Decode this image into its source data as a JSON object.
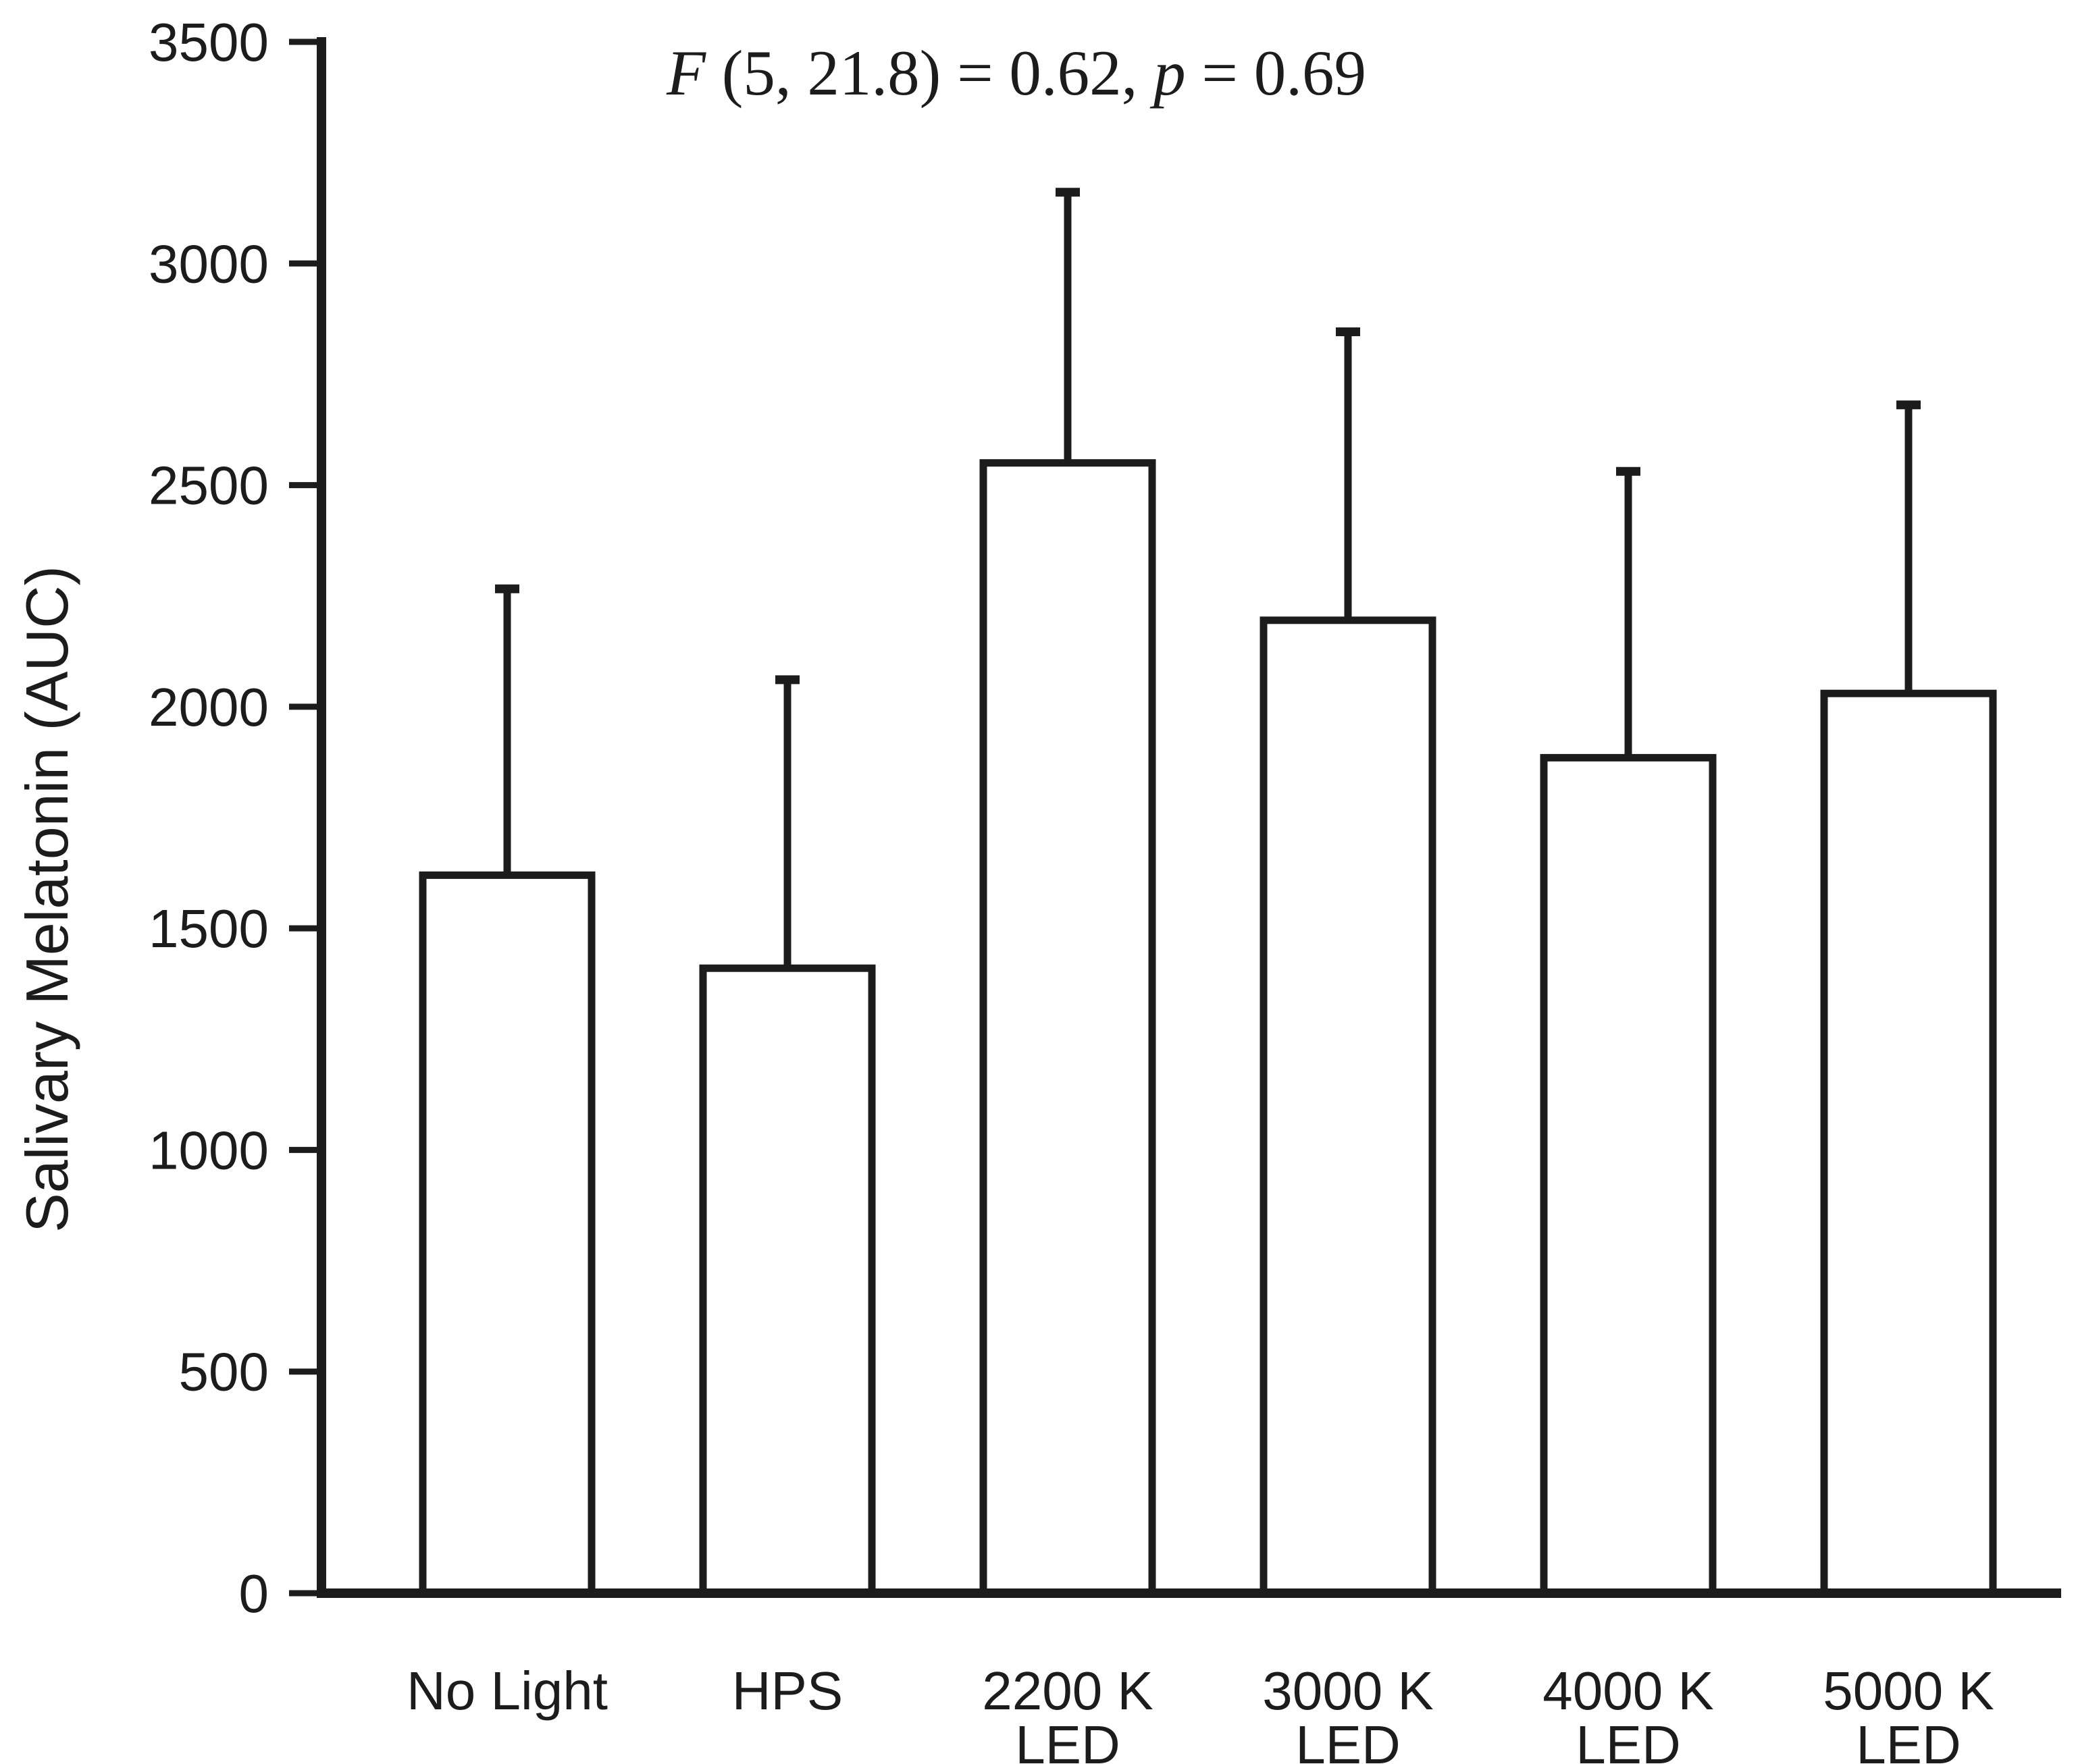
{
  "figure": {
    "background": "#ffffff",
    "ink_color": "#1c1c1c"
  },
  "chart_data": {
    "type": "bar",
    "title": "",
    "annotation": {
      "text": "F (5, 21.8) = 0.62, p = 0.69",
      "segments": [
        {
          "text": "F",
          "italic": true
        },
        {
          "text": " (5, 21.8) = 0.62, ",
          "italic": false
        },
        {
          "text": "p",
          "italic": true
        },
        {
          "text": " = 0.69",
          "italic": false
        }
      ]
    },
    "ylabel": "Salivary Melatonin (AUC)",
    "xlabel": "",
    "ylim": [
      0,
      3500
    ],
    "yticks": [
      0,
      500,
      1000,
      1500,
      2000,
      2500,
      3000,
      3500
    ],
    "grid": false,
    "legend": false,
    "error_bars": "upper-only",
    "bar_style": {
      "fill": "#ffffff",
      "stroke": "#1c1c1c"
    },
    "categories": [
      {
        "lines": [
          "No Light"
        ]
      },
      {
        "lines": [
          "HPS"
        ]
      },
      {
        "lines": [
          "2200 K",
          "LED"
        ]
      },
      {
        "lines": [
          "3000 K",
          "LED"
        ]
      },
      {
        "lines": [
          "4000 K",
          "LED"
        ]
      },
      {
        "lines": [
          "5000 K",
          "LED"
        ]
      }
    ],
    "series": [
      {
        "name": "Salivary Melatonin (AUC)",
        "values": [
          1620,
          1410,
          2550,
          2195,
          1885,
          2030
        ],
        "error_upper": [
          2275,
          2070,
          3170,
          2855,
          2540,
          2690
        ]
      }
    ]
  }
}
